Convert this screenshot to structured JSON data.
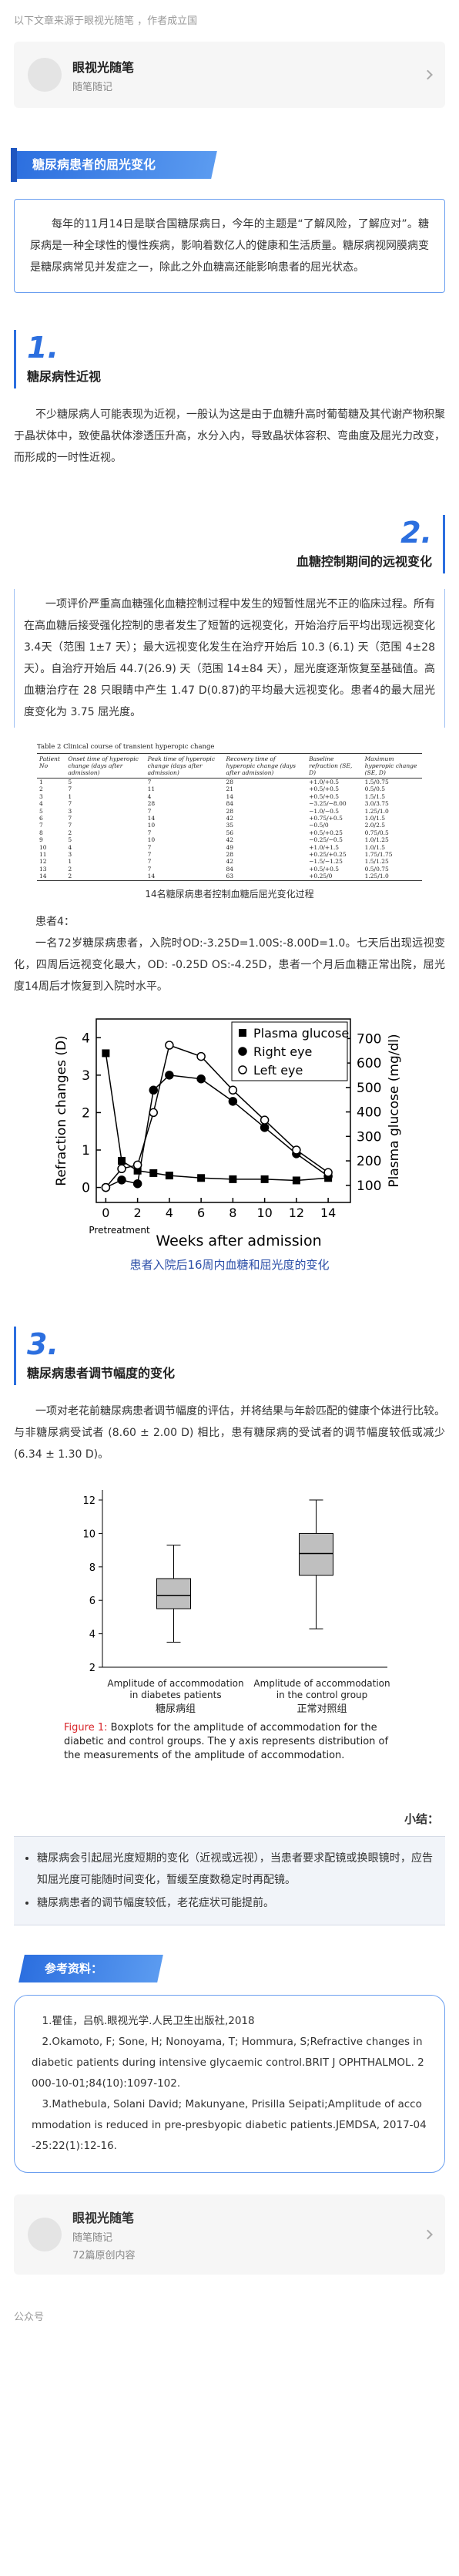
{
  "source_line": "以下文章来源于眼视光随笔 ，作者成立国",
  "account_card": {
    "name": "眼视光随笔",
    "desc": "随笔随记"
  },
  "section_title": "糖尿病患者的屈光变化",
  "intro": "每年的11月14日是联合国糖尿病日，今年的主题是“了解风险，了解应对”。糖尿病是一种全球性的慢性疾病，影响着数亿人的健康和生活质量。糖尿病视网膜病变是糖尿病常见并发症之一，除此之外血糖高还能影响患者的屈光状态。",
  "sections": [
    {
      "number": "1.",
      "title": "糖尿病性近视",
      "text": "不少糖尿病人可能表现为近视，一般认为这是由于血糖升高时葡萄糖及其代谢产物积聚于晶状体中，致使晶状体渗透压升高，水分入内，导致晶状体容积、弯曲度及屈光力改变，而形成的一时性近视。"
    },
    {
      "number": "2.",
      "title": "血糖控制期间的远视变化",
      "text": "一项评价严重高血糖强化血糖控制过程中发生的短暂性屈光不正的临床过程。所有在高血糖后接受强化控制的患者发生了短暂的远视变化，开始治疗后平均出现远视变化 3.4天（范围 1±7 天）；最大远视变化发生在治疗开始后 10.3 (6.1) 天（范围 4±28 天）。自治疗开始后 44.7(26.9) 天（范围 14±84 天），屈光度逐渐恢复至基础值。高血糖治疗在 28 只眼睛中产生 1.47 D(0.87)的平均最大远视变化。患者4的最大屈光度变化为 3.75 屈光度。"
    },
    {
      "number": "3.",
      "title": "糖尿病患者调节幅度的变化",
      "text": "一项对老花前糖尿病患者调节幅度的评估，并将结果与年龄匹配的健康个体进行比较。与非糖尿病受试者 (8.60 ± 2.00 D) 相比，患有糖尿病的受试者的调节幅度较低或减少 (6.34 ± 1.30 D)。"
    }
  ],
  "table": {
    "title": "Table 2   Clinical course of transient hyperopic change",
    "headers": [
      "Patient No",
      "Onset time of hyperopic change (days after admission)",
      "Peak time of hyperopic change (days after admission)",
      "Recovery time of hyperopic change (days after admission)",
      "Baseline refraction (SE, D)",
      "Maximum hyperopic change (SE, D)"
    ],
    "rows": [
      [
        "1",
        "5",
        "7",
        "28",
        "+1.0/+0.5",
        "1.5/0.75"
      ],
      [
        "2",
        "7",
        "11",
        "21",
        "+0.5/+0.5",
        "0.5/0.5"
      ],
      [
        "3",
        "1",
        "4",
        "14",
        "+0.5/+0.5",
        "1.5/1.5"
      ],
      [
        "4",
        "7",
        "28",
        "84",
        "−3.25/−8.00",
        "3.0/3.75"
      ],
      [
        "5",
        "3",
        "7",
        "28",
        "−1.0/−0.5",
        "1.25/1.0"
      ],
      [
        "6",
        "7",
        "14",
        "42",
        "+0.75/+0.5",
        "1.0/1.5"
      ],
      [
        "7",
        "7",
        "10",
        "35",
        "−0.5/0",
        "2.0/2.5"
      ],
      [
        "8",
        "2",
        "7",
        "56",
        "+0.5/+0.25",
        "0.75/0.5"
      ],
      [
        "9",
        "5",
        "10",
        "42",
        "−0.25/−0.5",
        "1.0/1.25"
      ],
      [
        "10",
        "4",
        "7",
        "49",
        "+1.0/+1.5",
        "1.0/1.5"
      ],
      [
        "11",
        "3",
        "7",
        "28",
        "+0.25/+0.25",
        "1.75/1.75"
      ],
      [
        "12",
        "1",
        "7",
        "42",
        "−1.5/−1.25",
        "1.5/1.25"
      ],
      [
        "13",
        "2",
        "7",
        "84",
        "+0.5/+0.5",
        "0.5/0.75"
      ],
      [
        "14",
        "2",
        "14",
        "63",
        "+0.25/0",
        "1.25/1.0"
      ]
    ],
    "caption": "14名糖尿病患者控制血糖后屈光变化过程"
  },
  "case": {
    "title": "患者4：",
    "text": "一名72岁糖尿病患者，入院时OD:-3.25D=1.00S:-8.00D=1.0。七天后出现远视变化，四周后远视变化最大，OD: -0.25D OS:-4.25D，患者一个月后血糖正常出院，屈光度14周后才恢复到入院时水平。"
  },
  "chart_data": [
    {
      "type": "line",
      "caption": "患者入院后16周内血糖和屈光度的变化",
      "x_label": "Weeks after admission",
      "y_label": "Refraction changes (D)",
      "y2_label": "Plasma glucose (mg/dl)",
      "x_annotation": "Pretreatment",
      "x": [
        0,
        1,
        2,
        3,
        4,
        6,
        8,
        10,
        12,
        14
      ],
      "series": [
        {
          "name": "Plasma glucose",
          "color": "#000000",
          "marker": "square",
          "axis": "y2",
          "values": [
            640,
            200,
            160,
            150,
            140,
            130,
            125,
            125,
            120,
            130
          ]
        },
        {
          "name": "Right eye",
          "color": "#000000",
          "marker": "circle",
          "values": [
            0,
            0.2,
            0.1,
            2.6,
            3.0,
            2.9,
            2.3,
            1.6,
            0.9,
            0.3
          ]
        },
        {
          "name": "Left eye",
          "color": "#000000",
          "marker": "circle-open",
          "values": [
            0,
            0.5,
            0.6,
            2.0,
            3.8,
            3.5,
            2.6,
            1.8,
            1.0,
            0.4
          ]
        }
      ],
      "xlim": [
        -0.6,
        15.4
      ],
      "xticks": [
        0,
        2,
        4,
        6,
        8,
        10,
        12,
        14
      ],
      "ylim": [
        -0.4,
        4.5
      ],
      "yticks": [
        0,
        1,
        2,
        3,
        4
      ],
      "y2lim": [
        30,
        780
      ],
      "y2ticks": [
        100,
        200,
        300,
        400,
        500,
        600,
        700
      ],
      "legend": "upper right"
    },
    {
      "type": "box",
      "categories": [
        "Amplitude of accommodation in diabetes patients",
        "Amplitude of accommodation in the control group"
      ],
      "group_labels": [
        "糖尿病组",
        "正常对照组"
      ],
      "boxes": [
        {
          "min": 3.5,
          "q1": 5.5,
          "median": 6.3,
          "q3": 7.3,
          "max": 9.3
        },
        {
          "min": 4.3,
          "q1": 7.5,
          "median": 8.8,
          "q3": 10.0,
          "max": 12.0
        }
      ],
      "color": "#bfbfbf",
      "ylim": [
        2,
        12.6
      ],
      "yticks": [
        2,
        4,
        6,
        8,
        10,
        12
      ],
      "caption_label": "Figure 1:",
      "caption": "Boxplots for the amplitude of accommodation for the diabetic and control groups. The y axis represents distribution of the measurements of the amplitude of accommodation."
    }
  ],
  "summary": {
    "title": "小结：",
    "items": [
      "糖尿病会引起屈光度短期的变化（近视或远视），当患者要求配镜或换眼镜时，应告知屈光度可能随时间变化，暂缓至度数稳定时再配镜。",
      "糖尿病患者的调节幅度较低，老花症状可能提前。"
    ]
  },
  "references": {
    "title": "参考资料：",
    "items": [
      "1.瞿佳，吕帆.眼视光学.人民卫生出版社,2018",
      "2.Okamoto, F; Sone, H; Nonoyama, T; Hommura, S;Refractive changes in diabetic patients during intensive glycaemic control.BRIT J OPHTHALMOL. 2000-10-01;84(10):1097-102.",
      "3.Mathebula, Solani David; Makunyane, Prisilla Seipati;Amplitude of accommodation is reduced in pre-presbyopic diabetic patients.JEMDSA, 2017-04-25:22(1):12-16."
    ]
  },
  "footer_card": {
    "name": "眼视光随笔",
    "desc": "随笔随记",
    "count": "72篇原创内容"
  },
  "footer_label": "公众号"
}
